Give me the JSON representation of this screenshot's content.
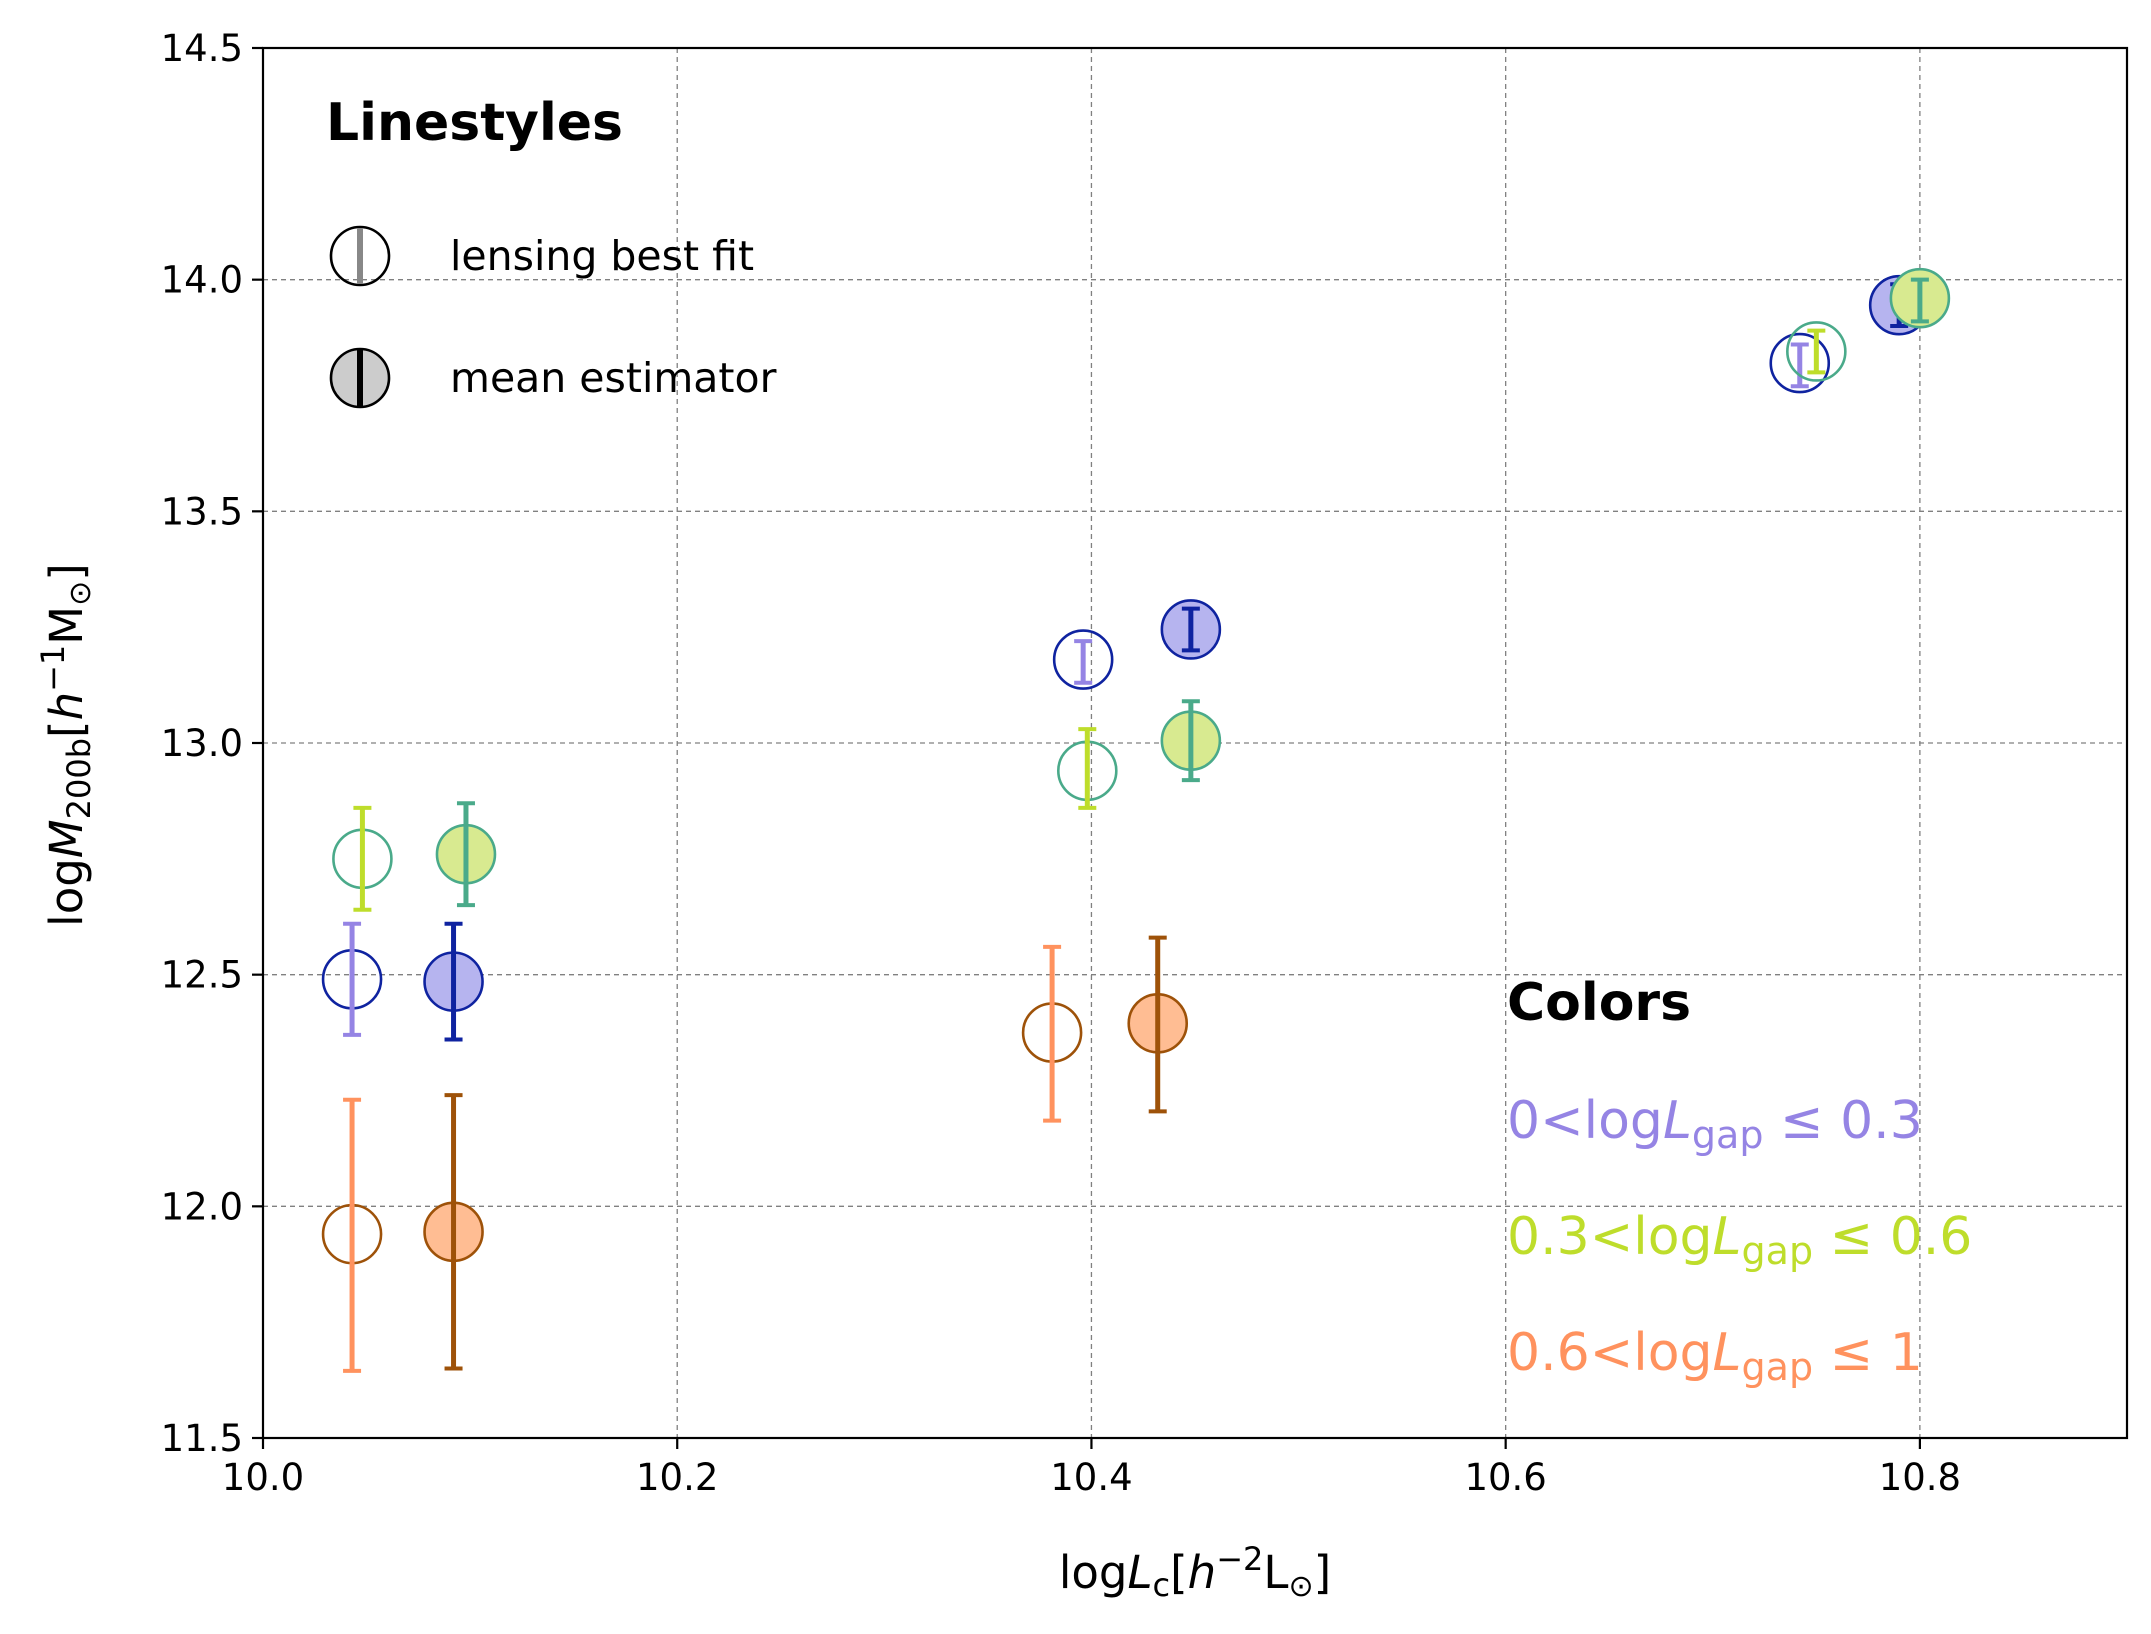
{
  "chart_data": {
    "type": "scatter",
    "xlabel": "logL_c[h^-2 L_sun]",
    "ylabel": "logM_200b[h^-1 M_sun]",
    "xlim": [
      10.0,
      10.9
    ],
    "ylim": [
      11.5,
      14.5
    ],
    "grid": true,
    "x_ticks": [
      10.0,
      10.2,
      10.4,
      10.6,
      10.8
    ],
    "x_tick_labels": [
      "10.0",
      "10.2",
      "10.4",
      "10.6",
      "10.8"
    ],
    "y_ticks": [
      11.5,
      12.0,
      12.5,
      13.0,
      13.5,
      14.0,
      14.5
    ],
    "y_tick_labels": [
      "11.5",
      "12.0",
      "12.5",
      "13.0",
      "13.5",
      "14.0",
      "14.5"
    ],
    "legend_linestyles": {
      "title": "Linestyles",
      "entries": [
        {
          "label": "lensing best fit",
          "style": "open"
        },
        {
          "label": "mean estimator",
          "style": "filled"
        }
      ]
    },
    "legend_colors": {
      "title": "Colors",
      "entries": [
        {
          "label": "0<logL_gap≤0.3",
          "color": "#9584e4"
        },
        {
          "label": "0.3<logL_gap≤0.6",
          "color": "#bedd2b"
        },
        {
          "label": "0.6<logL_gap≤1",
          "color": "#ff925e"
        }
      ]
    },
    "series": [
      {
        "name": "0<logL_gap≤0.3",
        "edge_color": "#0f23a0",
        "fill_color": "#b6b4ef",
        "err_open_color": "#9584e4",
        "err_filled_color": "#0f23a0",
        "lensing_best_fit": [
          {
            "x": 10.043,
            "y": 12.49,
            "err_low": 12.37,
            "err_high": 12.61
          },
          {
            "x": 10.396,
            "y": 13.18,
            "err_low": 13.13,
            "err_high": 13.22
          },
          {
            "x": 10.742,
            "y": 13.82,
            "err_low": 13.77,
            "err_high": 13.86
          }
        ],
        "mean_estimator": [
          {
            "x": 10.092,
            "y": 12.485,
            "err_low": 12.36,
            "err_high": 12.61
          },
          {
            "x": 10.448,
            "y": 13.245,
            "err_low": 13.2,
            "err_high": 13.29
          },
          {
            "x": 10.79,
            "y": 13.945,
            "err_low": 13.9,
            "err_high": 13.99
          }
        ]
      },
      {
        "name": "0.3<logL_gap≤0.6",
        "edge_color": "#4aaa8a",
        "fill_color": "#d8ea90",
        "err_open_color": "#bedd2b",
        "err_filled_color": "#4aaa8a",
        "lensing_best_fit": [
          {
            "x": 10.048,
            "y": 12.75,
            "err_low": 12.64,
            "err_high": 12.86
          },
          {
            "x": 10.398,
            "y": 12.94,
            "err_low": 12.86,
            "err_high": 13.03
          },
          {
            "x": 10.75,
            "y": 13.845,
            "err_low": 13.8,
            "err_high": 13.89
          }
        ],
        "mean_estimator": [
          {
            "x": 10.098,
            "y": 12.76,
            "err_low": 12.65,
            "err_high": 12.87
          },
          {
            "x": 10.448,
            "y": 13.005,
            "err_low": 12.92,
            "err_high": 13.09
          },
          {
            "x": 10.8,
            "y": 13.96,
            "err_low": 13.91,
            "err_high": 14.0
          }
        ]
      },
      {
        "name": "0.6<logL_gap≤1",
        "edge_color": "#9e5209",
        "fill_color": "#ffbd93",
        "err_open_color": "#ff925e",
        "err_filled_color": "#9e5209",
        "lensing_best_fit": [
          {
            "x": 10.043,
            "y": 11.94,
            "err_low": 11.645,
            "err_high": 12.23
          },
          {
            "x": 10.381,
            "y": 12.375,
            "err_low": 12.185,
            "err_high": 12.56
          },
          {
            "x": null,
            "y": null,
            "err_low": null,
            "err_high": null
          }
        ],
        "mean_estimator": [
          {
            "x": 10.092,
            "y": 11.945,
            "err_low": 11.65,
            "err_high": 12.24
          },
          {
            "x": 10.432,
            "y": 12.395,
            "err_low": 12.205,
            "err_high": 12.58
          },
          {
            "x": null,
            "y": null,
            "err_low": null,
            "err_high": null
          }
        ]
      }
    ]
  }
}
